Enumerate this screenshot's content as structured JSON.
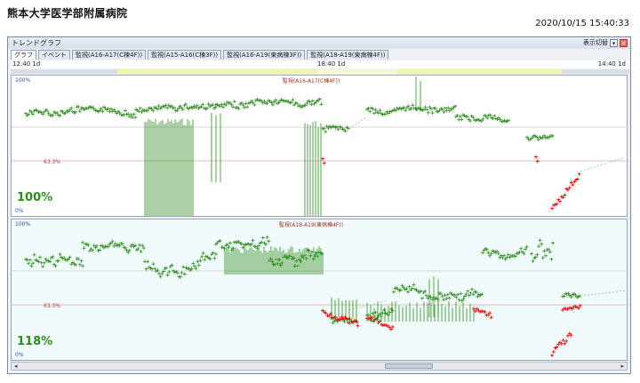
{
  "header": {
    "hospital": "熊本大学医学部附属病院",
    "datetime": "2020/10/15 15:40:33"
  },
  "window": {
    "title": "トレンドグラフ",
    "display_menu": "表示切替",
    "tabs": [
      "グラフ",
      "イベント",
      "監視(A16-A17(C棟4F))",
      "監視(A15-A16(C棟3F))",
      "監視(A16-A19(東病棟3F))",
      "監視(A18-A19(東病棟4F))"
    ],
    "time_labels": {
      "left": "12:40 1d",
      "mid": "18:40 1d",
      "right": "14:40 1d"
    }
  },
  "panels": [
    {
      "title": "監視(A16-A17(C棟4F))",
      "top_label": "100%",
      "mid_label": "63.3%",
      "bottom_label": "0%",
      "value": "100%"
    },
    {
      "title": "監視(A18-A19(東病棟4F))",
      "top_label": "100%",
      "mid_label": "63.3%",
      "bottom_label": "0%",
      "value": "118%"
    }
  ],
  "colors": {
    "green": "#2e8b1e",
    "red": "#e01010",
    "accent": "#2b6fb5"
  }
}
